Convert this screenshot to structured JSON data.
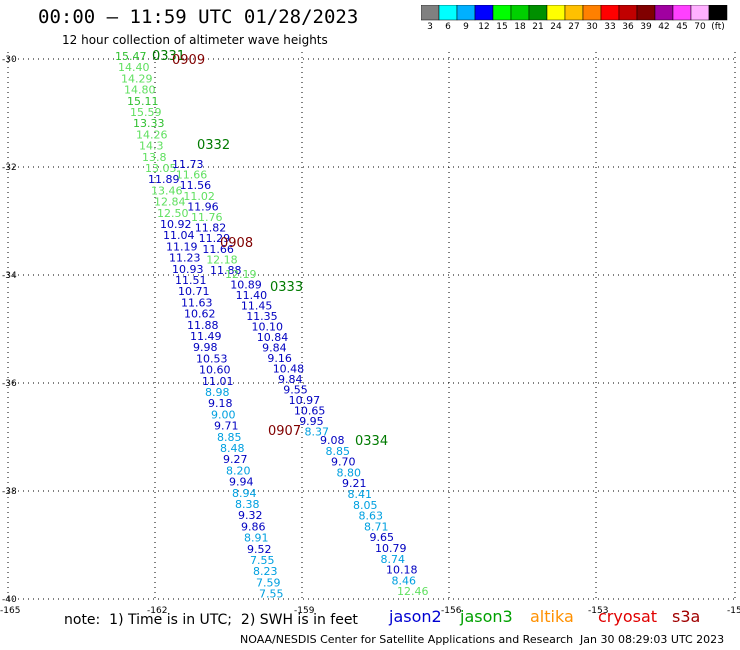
{
  "title": "00:00 – 11:59 UTC 01/28/2023",
  "subtitle": "12 hour collection of altimeter wave heights",
  "colorbar": {
    "colors": [
      "#808080",
      "#00ffff",
      "#00b0ff",
      "#0000ff",
      "#00ff00",
      "#00d000",
      "#009000",
      "#ffff00",
      "#ffc000",
      "#ff8000",
      "#ff0000",
      "#c00000",
      "#800000",
      "#a000a0",
      "#ff40ff",
      "#ffb0ff",
      "#000000"
    ],
    "labels": [
      "3",
      "6",
      "9",
      "12",
      "15",
      "18",
      "21",
      "24",
      "27",
      "30",
      "33",
      "36",
      "39",
      "42",
      "45",
      "70",
      "(ft)"
    ]
  },
  "axes": {
    "lat_labels": [
      "-30",
      "-32",
      "-34",
      "-36",
      "-38",
      "-40"
    ],
    "lon_labels": [
      "-165",
      "-162",
      "-159",
      "-156",
      "-153",
      "-15"
    ]
  },
  "tracks": [
    {
      "label": "0331",
      "color": "#007a00",
      "points": [
        [
          "15.47",
          "#30c030"
        ],
        [
          "14.40",
          "#60e060"
        ],
        [
          "14.29",
          "#60e060"
        ],
        [
          "14.80",
          "#60e060"
        ],
        [
          "15.11",
          "#30c030"
        ],
        [
          "15.59",
          "#60e060"
        ],
        [
          "13.33",
          "#30c030"
        ],
        [
          "14.26",
          "#60e060"
        ],
        [
          "14.3",
          "#60e060"
        ],
        [
          "13.8",
          "#60e060"
        ],
        [
          "13.05",
          "#60e060"
        ],
        [
          "11.89",
          "#0000c0"
        ],
        [
          "13.46",
          "#60e060"
        ],
        [
          "12.84",
          "#60e060"
        ],
        [
          "12.50",
          "#60e060"
        ],
        [
          "10.92",
          "#0000c0"
        ],
        [
          "11.04",
          "#0000c0"
        ],
        [
          "11.19",
          "#0000c0"
        ],
        [
          "11.23",
          "#0000c0"
        ],
        [
          "10.93",
          "#0000c0"
        ],
        [
          "11.51",
          "#0000c0"
        ],
        [
          "10.71",
          "#0000c0"
        ],
        [
          "11.63",
          "#0000c0"
        ],
        [
          "10.62",
          "#0000c0"
        ],
        [
          "11.88",
          "#0000c0"
        ],
        [
          "11.49",
          "#0000c0"
        ],
        [
          "9.98",
          "#0000c0"
        ],
        [
          "10.53",
          "#0000c0"
        ],
        [
          "10.60",
          "#0000c0"
        ],
        [
          "11.01",
          "#0000c0"
        ],
        [
          "8.98",
          "#00a0e0"
        ],
        [
          "9.18",
          "#0000c0"
        ],
        [
          "9.00",
          "#00a0e0"
        ],
        [
          "9.71",
          "#0000c0"
        ],
        [
          "8.85",
          "#00a0e0"
        ],
        [
          "8.48",
          "#00a0e0"
        ],
        [
          "9.27",
          "#0000c0"
        ],
        [
          "8.20",
          "#00a0e0"
        ],
        [
          "9.94",
          "#0000c0"
        ],
        [
          "8.94",
          "#00a0e0"
        ],
        [
          "8.38",
          "#00a0e0"
        ],
        [
          "9.32",
          "#0000c0"
        ],
        [
          "9.86",
          "#0000c0"
        ],
        [
          "8.91",
          "#00a0e0"
        ],
        [
          "9.52",
          "#0000c0"
        ],
        [
          "7.55",
          "#00a0e0"
        ],
        [
          "8.23",
          "#00a0e0"
        ],
        [
          "7.59",
          "#00a0e0"
        ],
        [
          "7.55",
          "#00a0e0"
        ]
      ]
    },
    {
      "label": "0332",
      "color": "#007a00",
      "points": [
        [
          "11.73",
          "#0000c0"
        ],
        [
          "11.66",
          "#60e060"
        ],
        [
          "11.56",
          "#0000c0"
        ],
        [
          "11.02",
          "#60e060"
        ],
        [
          "11.96",
          "#0000c0"
        ],
        [
          "11.76",
          "#60e060"
        ],
        [
          "11.82",
          "#0000c0"
        ],
        [
          "11.29",
          "#0000c0"
        ],
        [
          "11.66",
          "#0000c0"
        ],
        [
          "12.18",
          "#60e060"
        ],
        [
          "11.88",
          "#0000c0"
        ]
      ]
    },
    {
      "label": "0333",
      "color": "#007a00",
      "points": [
        [
          "12.19",
          "#60e060"
        ],
        [
          "10.89",
          "#0000c0"
        ],
        [
          "11.40",
          "#0000c0"
        ],
        [
          "11.45",
          "#0000c0"
        ],
        [
          "11.35",
          "#0000c0"
        ],
        [
          "10.10",
          "#0000c0"
        ],
        [
          "10.84",
          "#0000c0"
        ],
        [
          "9.84",
          "#0000c0"
        ],
        [
          "9.16",
          "#0000c0"
        ],
        [
          "10.48",
          "#0000c0"
        ],
        [
          "9.84",
          "#0000c0"
        ],
        [
          "9.55",
          "#0000c0"
        ],
        [
          "10.97",
          "#0000c0"
        ],
        [
          "10.65",
          "#0000c0"
        ],
        [
          "9.95",
          "#0000c0"
        ],
        [
          "8.37",
          "#00a0e0"
        ]
      ]
    },
    {
      "label": "0334",
      "color": "#007a00",
      "points": [
        [
          "9.08",
          "#0000c0"
        ],
        [
          "8.85",
          "#00a0e0"
        ],
        [
          "9.70",
          "#0000c0"
        ],
        [
          "8.80",
          "#00a0e0"
        ],
        [
          "9.21",
          "#0000c0"
        ],
        [
          "8.41",
          "#00a0e0"
        ],
        [
          "8.05",
          "#00a0e0"
        ],
        [
          "8.63",
          "#00a0e0"
        ],
        [
          "8.71",
          "#00a0e0"
        ],
        [
          "9.65",
          "#0000c0"
        ],
        [
          "10.79",
          "#0000c0"
        ],
        [
          "8.74",
          "#00a0e0"
        ],
        [
          "10.18",
          "#0000c0"
        ],
        [
          "8.46",
          "#00a0e0"
        ],
        [
          "12.46",
          "#60e060"
        ]
      ]
    }
  ],
  "cryosat_labels": [
    "0909",
    "0908",
    "0907"
  ],
  "note": "note:  1) Time is in UTC;  2) SWH is in feet",
  "satellites": [
    {
      "name": "jason2",
      "color": "#0000d0"
    },
    {
      "name": "jason3",
      "color": "#00a000"
    },
    {
      "name": "altika",
      "color": "#ff9000"
    },
    {
      "name": "cryosat",
      "color": "#e00000"
    },
    {
      "name": "s3a",
      "color": "#a00000"
    }
  ],
  "footer": "NOAA/NESDIS Center for Satellite Applications and Research",
  "footer_time": "Jan 30 08:29:03 UTC 2023"
}
